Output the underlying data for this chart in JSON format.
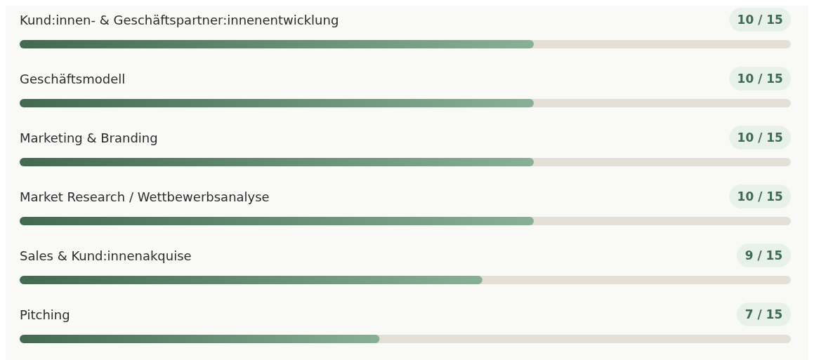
{
  "chart_data": {
    "type": "bar",
    "orientation": "horizontal",
    "categories": [
      "Kund:innen- & Geschäftspartner:innenentwicklung",
      "Geschäftsmodell",
      "Marketing & Branding",
      "Market Research / Wettbewerbsanalyse",
      "Sales & Kund:innenakquise",
      "Pitching"
    ],
    "values": [
      10,
      10,
      10,
      10,
      9,
      7
    ],
    "value_labels": [
      "10 / 15",
      "10 / 15",
      "10 / 15",
      "10 / 15",
      "9 / 15",
      "7 / 15"
    ],
    "color": "#5f9672",
    "xlim": [
      0,
      15
    ],
    "tick_labels": false,
    "grid": false,
    "legend": false
  }
}
